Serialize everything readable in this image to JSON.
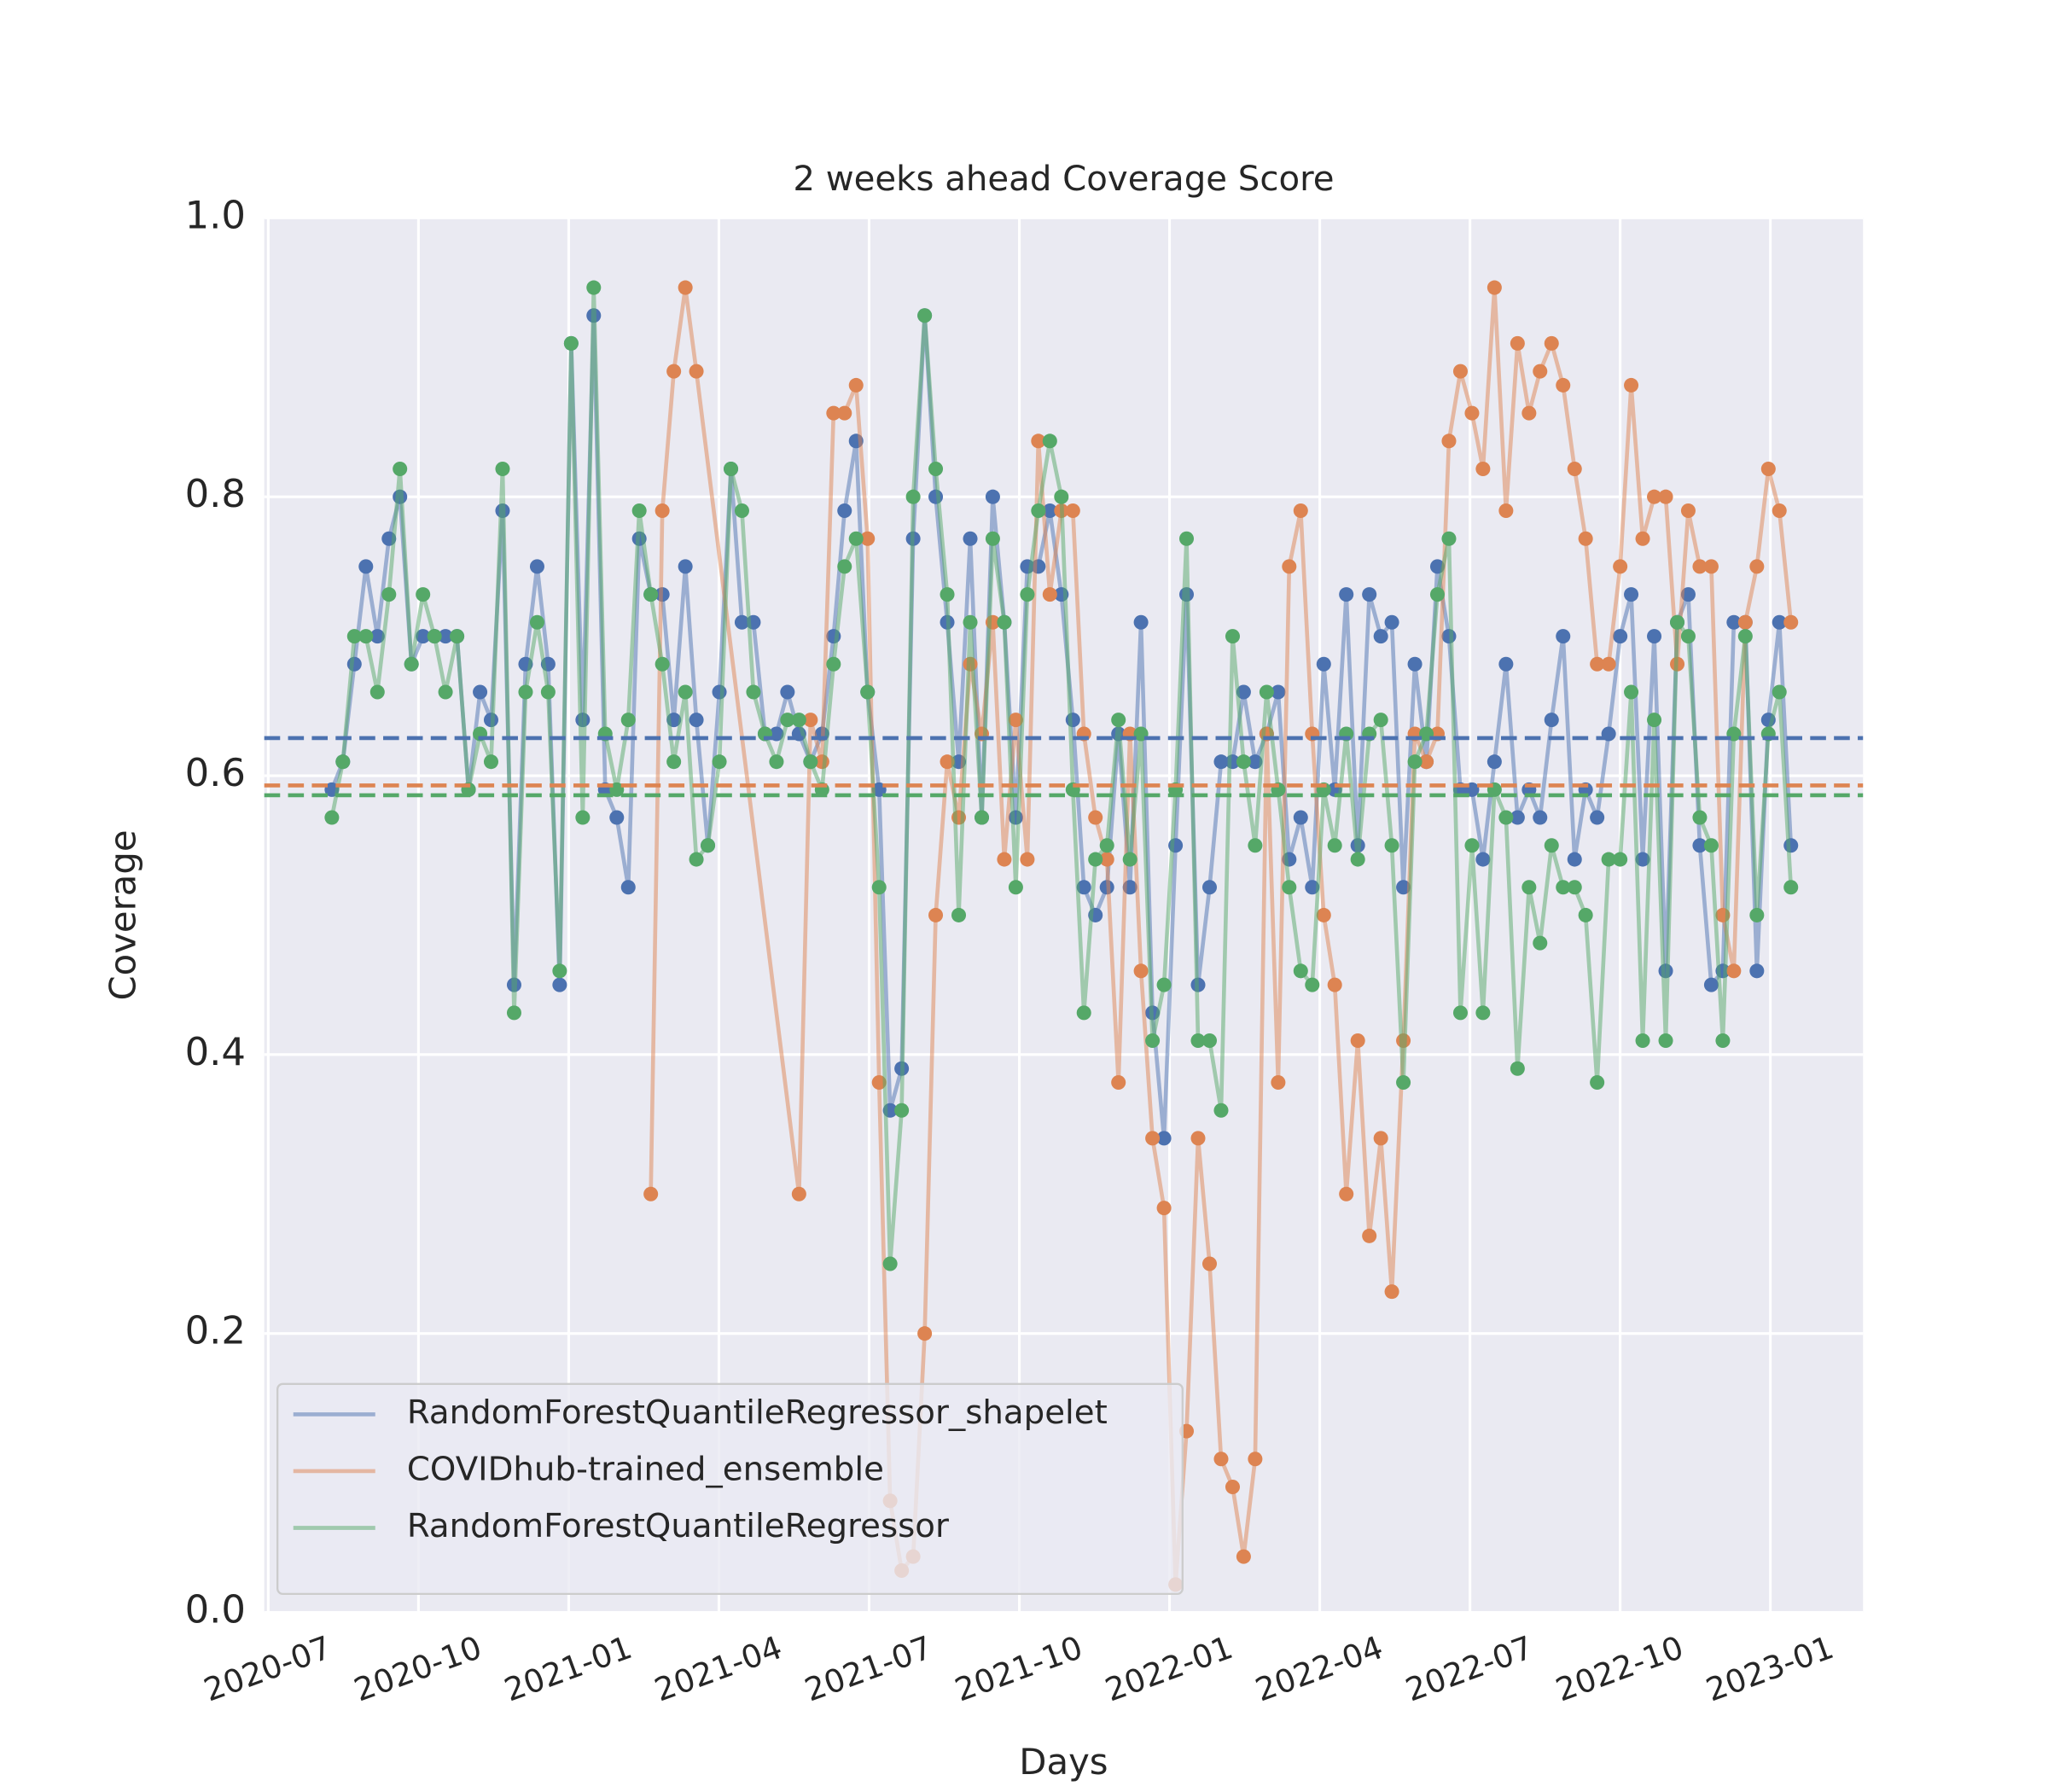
{
  "chart_data": {
    "type": "line",
    "title": "2 weeks ahead Coverage Score",
    "xlabel": "Days",
    "ylabel": "Coverage",
    "xlim": [
      -0.08,
      31.85
    ],
    "xticks": [
      {
        "value": 0,
        "label": "2020-07"
      },
      {
        "value": 3,
        "label": "2020-10"
      },
      {
        "value": 6,
        "label": "2021-01"
      },
      {
        "value": 9,
        "label": "2021-04"
      },
      {
        "value": 12,
        "label": "2021-07"
      },
      {
        "value": 15,
        "label": "2021-10"
      },
      {
        "value": 18,
        "label": "2022-01"
      },
      {
        "value": 21,
        "label": "2022-04"
      },
      {
        "value": 24,
        "label": "2022-07"
      },
      {
        "value": 27,
        "label": "2022-10"
      },
      {
        "value": 30,
        "label": "2023-01"
      }
    ],
    "ylim": [
      0,
      1
    ],
    "yticks": [
      {
        "value": 0,
        "label": "0.0"
      },
      0.2,
      0.4,
      0.6,
      0.8,
      {
        "value": 1,
        "label": "1.0"
      }
    ],
    "grid": true,
    "legend": "lower left",
    "x": [
      1.27,
      1.49,
      1.72,
      1.95,
      2.18,
      2.41,
      2.63,
      2.86,
      3.09,
      3.32,
      3.54,
      3.77,
      4.0,
      4.23,
      4.45,
      4.68,
      4.91,
      5.14,
      5.37,
      5.59,
      5.82,
      6.05,
      6.28,
      6.5,
      6.73,
      6.96,
      7.19,
      7.41,
      7.64,
      7.87,
      8.1,
      8.33,
      8.55,
      8.78,
      9.01,
      9.24,
      9.46,
      9.69,
      9.92,
      10.15,
      10.37,
      10.6,
      10.83,
      11.06,
      11.29,
      11.51,
      11.74,
      11.97,
      12.2,
      12.42,
      12.65,
      12.88,
      13.11,
      13.33,
      13.56,
      13.79,
      14.02,
      14.25,
      14.47,
      14.7,
      14.93,
      15.16,
      15.38,
      15.61,
      15.84,
      16.07,
      16.29,
      16.52,
      16.75,
      16.98,
      17.21,
      17.43,
      17.66,
      17.89,
      18.12,
      18.34,
      18.57,
      18.8,
      19.03,
      19.26,
      19.48,
      19.71,
      19.94,
      20.17,
      20.39,
      20.62,
      20.85,
      21.08,
      21.3,
      21.53,
      21.76,
      21.99,
      22.22,
      22.44,
      22.67,
      22.9,
      23.13,
      23.35,
      23.58,
      23.81,
      24.04,
      24.26,
      24.49,
      24.72,
      24.95,
      25.18,
      25.4,
      25.63,
      25.86,
      26.09,
      26.31,
      26.54,
      26.77,
      27.0,
      27.22,
      27.45,
      27.68,
      27.91,
      28.14,
      28.36,
      28.59,
      28.82,
      29.05,
      29.27,
      29.5,
      29.73,
      29.96,
      30.18,
      30.41
    ],
    "series": [
      {
        "name": "RandomForestQuantileRegressor_shapelet",
        "color": "#4c72b0",
        "mean": 0.627,
        "values": [
          0.59,
          0.61,
          0.68,
          0.75,
          0.7,
          0.77,
          0.8,
          0.68,
          0.7,
          0.7,
          0.7,
          0.7,
          0.59,
          0.66,
          0.64,
          0.79,
          0.45,
          0.68,
          0.75,
          0.68,
          0.45,
          0.91,
          0.64,
          0.93,
          0.59,
          0.57,
          0.52,
          0.77,
          0.73,
          0.73,
          0.64,
          0.75,
          0.64,
          0.55,
          0.66,
          0.82,
          0.71,
          0.71,
          0.63,
          0.63,
          0.66,
          0.63,
          0.61,
          0.63,
          0.7,
          0.79,
          0.84,
          0.66,
          0.59,
          0.36,
          0.39,
          0.77,
          0.93,
          0.8,
          0.71,
          0.61,
          0.77,
          0.57,
          0.8,
          0.71,
          0.57,
          0.75,
          0.75,
          0.79,
          0.73,
          0.64,
          0.52,
          0.5,
          0.52,
          0.63,
          0.52,
          0.71,
          0.43,
          0.34,
          0.55,
          0.73,
          0.45,
          0.52,
          0.61,
          0.61,
          0.66,
          0.61,
          0.63,
          0.66,
          0.54,
          0.57,
          0.52,
          0.68,
          0.59,
          0.73,
          0.55,
          0.73,
          0.7,
          0.71,
          0.52,
          0.68,
          0.61,
          0.75,
          0.7,
          0.59,
          0.59,
          0.54,
          0.61,
          0.68,
          0.57,
          0.59,
          0.57,
          0.64,
          0.7,
          0.54,
          0.59,
          0.57,
          0.63,
          0.7,
          0.73,
          0.54,
          0.7,
          0.46,
          0.71,
          0.73,
          0.55,
          0.45,
          0.46,
          0.71,
          0.71,
          0.46,
          0.64,
          0.71,
          0.55
        ]
      },
      {
        "name": "COVIDhub-trained_ensemble",
        "color": "#dd8452",
        "mean": 0.593,
        "x": [
          7.64,
          7.87,
          8.1,
          8.33,
          8.55,
          10.6,
          10.83,
          11.06,
          11.29,
          11.51,
          11.74,
          11.97,
          12.2,
          12.42,
          12.65,
          12.88,
          13.11,
          13.33,
          13.56,
          13.79,
          14.02,
          14.25,
          14.47,
          14.7,
          14.93,
          15.16,
          15.38,
          15.61,
          15.84,
          16.07,
          16.29,
          16.52,
          16.75,
          16.98,
          17.21,
          17.43,
          17.66,
          17.89,
          18.12,
          18.34,
          18.57,
          18.8,
          19.03,
          19.26,
          19.48,
          19.71,
          19.94,
          20.17,
          20.39,
          20.62,
          20.85,
          21.08,
          21.3,
          21.53,
          21.76,
          21.99,
          22.22,
          22.44,
          22.67,
          22.9,
          23.13,
          23.35,
          23.58,
          23.81,
          24.04,
          24.26,
          24.49,
          24.72,
          24.95,
          25.18,
          25.4,
          25.63,
          25.86,
          26.09,
          26.31,
          26.54,
          26.77,
          27.0,
          27.22,
          27.45,
          27.68,
          27.91,
          28.14,
          28.36,
          28.59,
          28.82,
          29.05,
          29.27,
          29.5,
          29.73,
          29.96,
          30.18,
          30.41
        ],
        "values": [
          0.3,
          0.79,
          0.89,
          0.95,
          0.89,
          0.3,
          0.64,
          0.61,
          0.86,
          0.86,
          0.88,
          0.77,
          0.38,
          0.08,
          0.03,
          0.04,
          0.2,
          0.5,
          0.61,
          0.57,
          0.68,
          0.63,
          0.71,
          0.54,
          0.64,
          0.54,
          0.84,
          0.73,
          0.79,
          0.79,
          0.63,
          0.57,
          0.54,
          0.38,
          0.63,
          0.46,
          0.34,
          0.29,
          0.02,
          0.13,
          0.34,
          0.25,
          0.11,
          0.09,
          0.04,
          0.11,
          0.63,
          0.38,
          0.75,
          0.79,
          0.63,
          0.5,
          0.45,
          0.3,
          0.41,
          0.27,
          0.34,
          0.23,
          0.41,
          0.63,
          0.61,
          0.63,
          0.84,
          0.89,
          0.86,
          0.82,
          0.95,
          0.79,
          0.91,
          0.86,
          0.89,
          0.91,
          0.88,
          0.82,
          0.77,
          0.68,
          0.68,
          0.75,
          0.88,
          0.77,
          0.8,
          0.8,
          0.68,
          0.79,
          0.75,
          0.75,
          0.5,
          0.46,
          0.71,
          0.75,
          0.82,
          0.79,
          0.71
        ]
      },
      {
        "name": "RandomForestQuantileRegressor",
        "color": "#55a868",
        "mean": 0.586,
        "values": [
          0.57,
          0.61,
          0.7,
          0.7,
          0.66,
          0.73,
          0.82,
          0.68,
          0.73,
          0.7,
          0.66,
          0.7,
          0.59,
          0.63,
          0.61,
          0.82,
          0.43,
          0.66,
          0.71,
          0.66,
          0.46,
          0.91,
          0.57,
          0.95,
          0.63,
          0.59,
          0.64,
          0.79,
          0.73,
          0.68,
          0.61,
          0.66,
          0.54,
          0.55,
          0.61,
          0.82,
          0.79,
          0.66,
          0.63,
          0.61,
          0.64,
          0.64,
          0.61,
          0.59,
          0.68,
          0.75,
          0.77,
          0.66,
          0.52,
          0.25,
          0.36,
          0.8,
          0.93,
          0.82,
          0.73,
          0.5,
          0.71,
          0.57,
          0.77,
          0.71,
          0.52,
          0.73,
          0.79,
          0.84,
          0.8,
          0.59,
          0.43,
          0.54,
          0.55,
          0.64,
          0.54,
          0.63,
          0.41,
          0.45,
          0.59,
          0.77,
          0.41,
          0.41,
          0.36,
          0.7,
          0.61,
          0.55,
          0.66,
          0.59,
          0.52,
          0.46,
          0.45,
          0.59,
          0.55,
          0.63,
          0.54,
          0.63,
          0.64,
          0.55,
          0.38,
          0.61,
          0.63,
          0.73,
          0.77,
          0.43,
          0.55,
          0.43,
          0.59,
          0.57,
          0.39,
          0.52,
          0.48,
          0.55,
          0.52,
          0.52,
          0.5,
          0.38,
          0.54,
          0.54,
          0.66,
          0.41,
          0.64,
          0.41,
          0.71,
          0.7,
          0.57,
          0.55,
          0.41,
          0.63,
          0.7,
          0.5,
          0.63,
          0.66,
          0.52
        ]
      }
    ]
  }
}
